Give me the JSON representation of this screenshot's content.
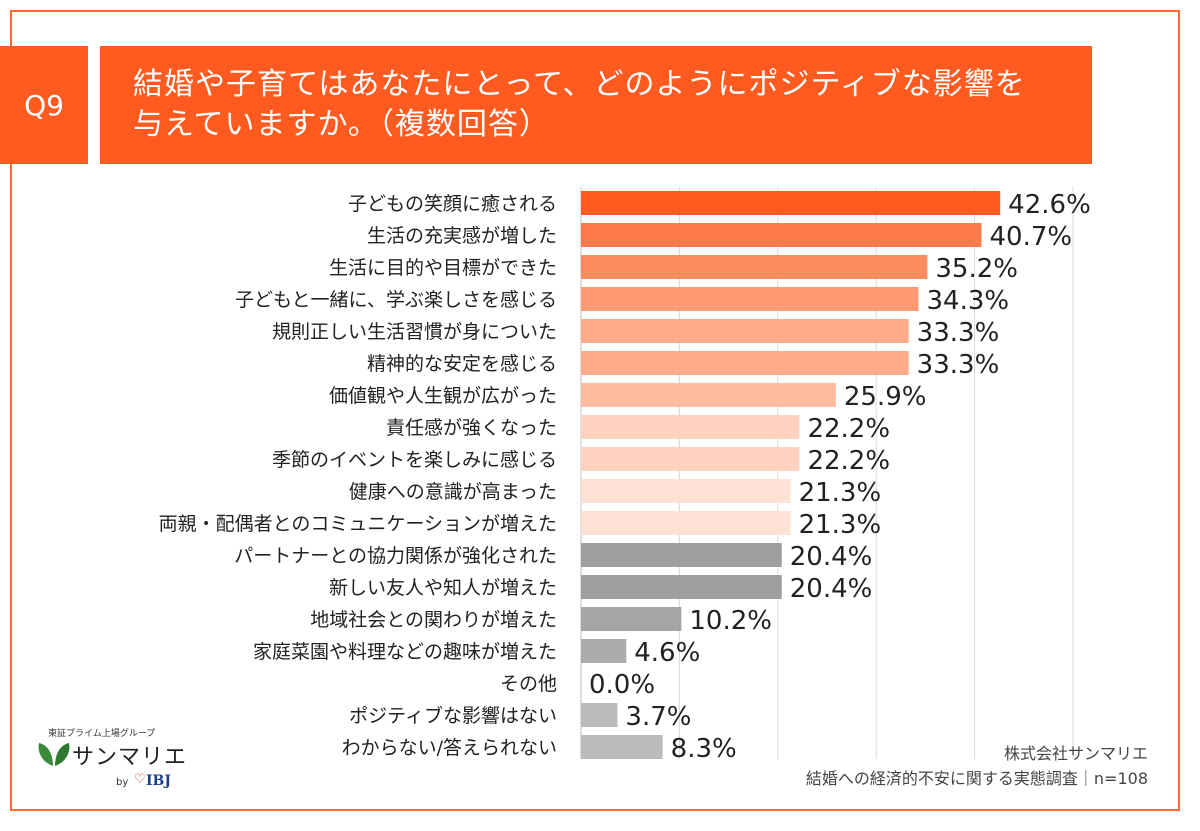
{
  "question": {
    "number": "Q9",
    "title_line1": "結婚や子育てはあなたにとって、どのようにポジティブな影響を",
    "title_line2": "与えていますか。（複数回答）"
  },
  "chart_data": {
    "type": "bar",
    "orientation": "horizontal",
    "categories": [
      "子どもの笑顔に癒される",
      "生活の充実感が増した",
      "生活に目的や目標ができた",
      "子どもと一緒に、学ぶ楽しさを感じる",
      "規則正しい生活習慣が身についた",
      "精神的な安定を感じる",
      "価値観や人生観が広がった",
      "責任感が強くなった",
      "季節のイベントを楽しみに感じる",
      "健康への意識が高まった",
      "両親・配偶者とのコミュニケーションが増えた",
      "パートナーとの協力関係が強化された",
      "新しい友人や知人が増えた",
      "地域社会との関わりが増えた",
      "家庭菜園や料理などの趣味が増えた",
      "その他",
      "ポジティブな影響はない",
      "わからない/答えられない"
    ],
    "values": [
      42.6,
      40.7,
      35.2,
      34.3,
      33.3,
      33.3,
      25.9,
      22.2,
      22.2,
      21.3,
      21.3,
      20.4,
      20.4,
      10.2,
      4.6,
      0.0,
      3.7,
      8.3
    ],
    "value_labels": [
      "42.6%",
      "40.7%",
      "35.2%",
      "34.3%",
      "33.3%",
      "33.3%",
      "25.9%",
      "22.2%",
      "22.2%",
      "21.3%",
      "21.3%",
      "20.4%",
      "20.4%",
      "10.2%",
      "4.6%",
      "0.0%",
      "3.7%",
      "8.3%"
    ],
    "bar_colors": [
      "#ff5a1f",
      "#ff7a4a",
      "#ff8c60",
      "#ff9a72",
      "#ffac8a",
      "#ffac8a",
      "#ffbca0",
      "#ffd2c0",
      "#ffd2c0",
      "#ffe0d4",
      "#ffe0d4",
      "#9e9e9e",
      "#9e9e9e",
      "#a5a5a5",
      "#ababab",
      "#b3b3b3",
      "#bbbbbb",
      "#bbbbbb"
    ],
    "xlim": [
      0,
      50
    ],
    "grid": true,
    "title": "",
    "xlabel": "",
    "ylabel": ""
  },
  "branding": {
    "caption": "東証プライム上場グループ",
    "name": "サンマリエ",
    "by": "by",
    "partner": "IBJ"
  },
  "source": {
    "company": "株式会社サンマリエ",
    "survey": "結婚への経済的不安に関する実態調査｜n=108"
  },
  "colors": {
    "accent": "#ff5a1f",
    "frame": "#ff6b2d",
    "gridline": "#d9d9d9"
  }
}
